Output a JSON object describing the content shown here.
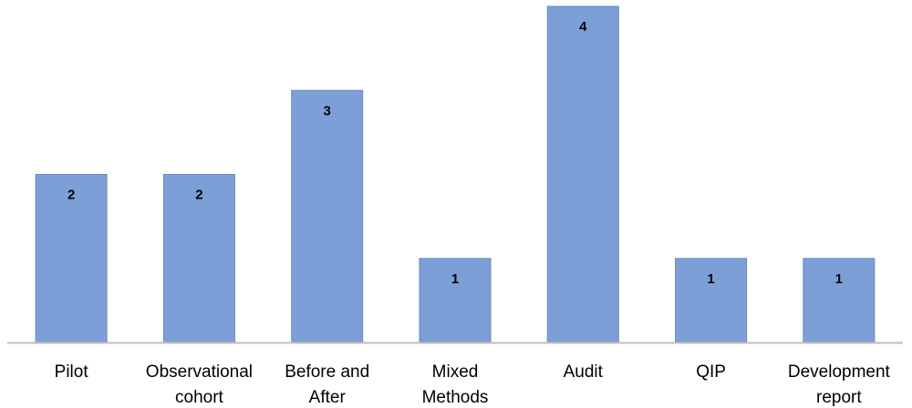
{
  "chart_data": {
    "type": "bar",
    "title": "",
    "xlabel": "",
    "ylabel": "",
    "categories": [
      [
        "Pilot"
      ],
      [
        "Observational",
        "cohort"
      ],
      [
        "Before and",
        "After"
      ],
      [
        "Mixed",
        "Methods"
      ],
      [
        "Audit"
      ],
      [
        "QIP"
      ],
      [
        "Development",
        "report"
      ]
    ],
    "values": [
      2,
      2,
      3,
      1,
      4,
      1,
      1
    ],
    "ylim": [
      0,
      4
    ],
    "grid": false,
    "legend": "none",
    "data_labels": true,
    "bar_color": "#7b9fd6",
    "bar_edge_color": "#6a8cc2",
    "axis_color": "#bfbfbf"
  }
}
